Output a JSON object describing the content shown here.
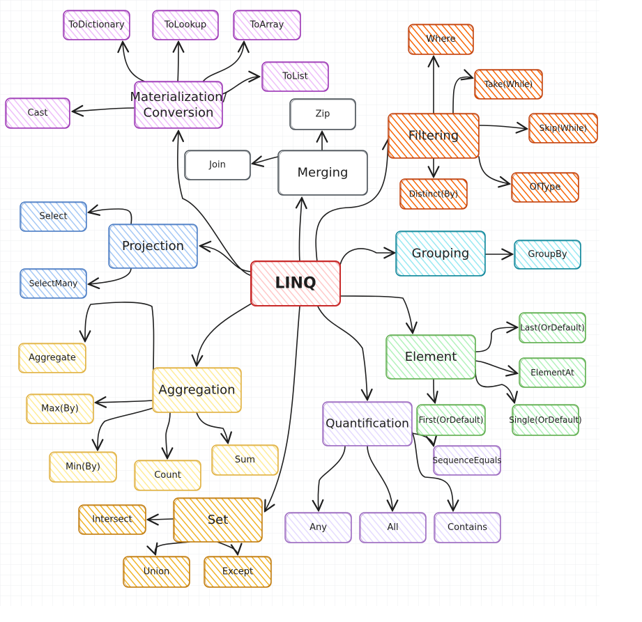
{
  "diagram": {
    "nodes": [
      {
        "id": "linq",
        "label": "LINQ",
        "group": "root"
      },
      {
        "id": "materialization",
        "label": "Materialization/ Conversion",
        "group": "materialization"
      },
      {
        "id": "todictionary",
        "label": "ToDictionary",
        "group": "materialization"
      },
      {
        "id": "tolookup",
        "label": "ToLookup",
        "group": "materialization"
      },
      {
        "id": "toarray",
        "label": "ToArray",
        "group": "materialization"
      },
      {
        "id": "tolist",
        "label": "ToList",
        "group": "materialization"
      },
      {
        "id": "cast",
        "label": "Cast",
        "group": "materialization"
      },
      {
        "id": "merging",
        "label": "Merging",
        "group": "merging"
      },
      {
        "id": "zip",
        "label": "Zip",
        "group": "merging"
      },
      {
        "id": "join",
        "label": "Join",
        "group": "merging"
      },
      {
        "id": "filtering",
        "label": "Filtering",
        "group": "filtering"
      },
      {
        "id": "where",
        "label": "Where",
        "group": "filtering"
      },
      {
        "id": "takewhile",
        "label": "Take(While)",
        "group": "filtering"
      },
      {
        "id": "skipwhile",
        "label": "Skip(While)",
        "group": "filtering"
      },
      {
        "id": "oftype",
        "label": "OfType",
        "group": "filtering"
      },
      {
        "id": "distinctby",
        "label": "Distinct(By)",
        "group": "filtering"
      },
      {
        "id": "projection",
        "label": "Projection",
        "group": "projection"
      },
      {
        "id": "select",
        "label": "Select",
        "group": "projection"
      },
      {
        "id": "selectmany",
        "label": "SelectMany",
        "group": "projection"
      },
      {
        "id": "grouping",
        "label": "Grouping",
        "group": "grouping"
      },
      {
        "id": "groupby",
        "label": "GroupBy",
        "group": "grouping"
      },
      {
        "id": "element",
        "label": "Element",
        "group": "element"
      },
      {
        "id": "lastordefault",
        "label": "Last(OrDefault)",
        "group": "element"
      },
      {
        "id": "elementat",
        "label": "ElementAt",
        "group": "element"
      },
      {
        "id": "firstordefault",
        "label": "First(OrDefault)",
        "group": "element"
      },
      {
        "id": "singleordefault",
        "label": "Single(OrDefault)",
        "group": "element"
      },
      {
        "id": "aggregation",
        "label": "Aggregation",
        "group": "aggregation"
      },
      {
        "id": "aggregate",
        "label": "Aggregate",
        "group": "aggregation"
      },
      {
        "id": "maxby",
        "label": "Max(By)",
        "group": "aggregation"
      },
      {
        "id": "minby",
        "label": "Min(By)",
        "group": "aggregation"
      },
      {
        "id": "count",
        "label": "Count",
        "group": "aggregation"
      },
      {
        "id": "sum",
        "label": "Sum",
        "group": "aggregation"
      },
      {
        "id": "quantification",
        "label": "Quantification",
        "group": "quantification"
      },
      {
        "id": "sequenceequals",
        "label": "SequenceEquals",
        "group": "quantification"
      },
      {
        "id": "any",
        "label": "Any",
        "group": "quantification"
      },
      {
        "id": "all",
        "label": "All",
        "group": "quantification"
      },
      {
        "id": "contains",
        "label": "Contains",
        "group": "quantification"
      },
      {
        "id": "set",
        "label": "Set",
        "group": "set"
      },
      {
        "id": "intersect",
        "label": "Intersect",
        "group": "set"
      },
      {
        "id": "union",
        "label": "Union",
        "group": "set"
      },
      {
        "id": "except",
        "label": "Except",
        "group": "set"
      }
    ],
    "edges": [
      [
        "linq",
        "materialization"
      ],
      [
        "linq",
        "merging"
      ],
      [
        "linq",
        "filtering"
      ],
      [
        "linq",
        "projection"
      ],
      [
        "linq",
        "grouping"
      ],
      [
        "linq",
        "element"
      ],
      [
        "linq",
        "aggregation"
      ],
      [
        "linq",
        "quantification"
      ],
      [
        "linq",
        "set"
      ],
      [
        "materialization",
        "todictionary"
      ],
      [
        "materialization",
        "tolookup"
      ],
      [
        "materialization",
        "toarray"
      ],
      [
        "materialization",
        "tolist"
      ],
      [
        "materialization",
        "cast"
      ],
      [
        "merging",
        "zip"
      ],
      [
        "merging",
        "join"
      ],
      [
        "filtering",
        "where"
      ],
      [
        "filtering",
        "takewhile"
      ],
      [
        "filtering",
        "skipwhile"
      ],
      [
        "filtering",
        "oftype"
      ],
      [
        "filtering",
        "distinctby"
      ],
      [
        "projection",
        "select"
      ],
      [
        "projection",
        "selectmany"
      ],
      [
        "grouping",
        "groupby"
      ],
      [
        "element",
        "lastordefault"
      ],
      [
        "element",
        "elementat"
      ],
      [
        "element",
        "firstordefault"
      ],
      [
        "element",
        "singleordefault"
      ],
      [
        "aggregation",
        "aggregate"
      ],
      [
        "aggregation",
        "maxby"
      ],
      [
        "aggregation",
        "minby"
      ],
      [
        "aggregation",
        "count"
      ],
      [
        "aggregation",
        "sum"
      ],
      [
        "quantification",
        "sequenceequals"
      ],
      [
        "quantification",
        "any"
      ],
      [
        "quantification",
        "all"
      ],
      [
        "quantification",
        "contains"
      ],
      [
        "set",
        "intersect"
      ],
      [
        "set",
        "union"
      ],
      [
        "set",
        "except"
      ]
    ],
    "palette": {
      "root": {
        "stroke": "#c92a2a",
        "fill": "#ffc9c9"
      },
      "materialization": {
        "stroke": "#9c36b5",
        "fill": "#eebefa"
      },
      "merging": {
        "stroke": "#495057",
        "fill": "#ffffff"
      },
      "filtering": {
        "stroke": "#c2410c",
        "fill": "#f76707"
      },
      "projection": {
        "stroke": "#4a7cc4",
        "fill": "#a5c8f5"
      },
      "grouping": {
        "stroke": "#0c8599",
        "fill": "#99e9f2"
      },
      "element": {
        "stroke": "#5fae4e",
        "fill": "#b2f2bb"
      },
      "aggregation": {
        "stroke": "#e0b040",
        "fill": "#ffec99"
      },
      "quantification": {
        "stroke": "#9c6ac0",
        "fill": "#e5dbff"
      },
      "set": {
        "stroke": "#c27c0e",
        "fill": "#f0b429"
      },
      "line": "#1e1e1e",
      "grid": "#eceff2"
    }
  }
}
